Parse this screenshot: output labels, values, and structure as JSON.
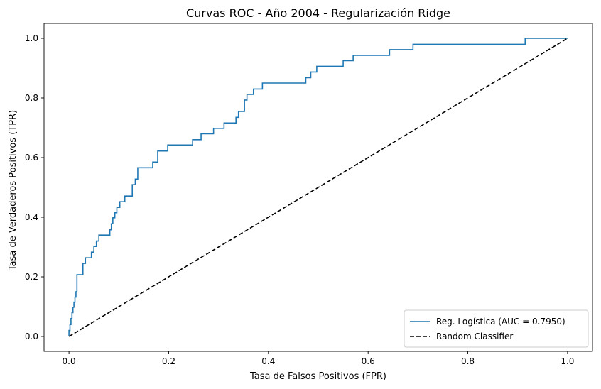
{
  "chart_data": {
    "type": "line",
    "title": "Curvas ROC - Año 2004 - Regularización Ridge",
    "xlabel": "Tasa de Falsos Positivos (FPR)",
    "ylabel": "Tasa de Verdaderos Positivos (TPR)",
    "xlim": [
      -0.05,
      1.05
    ],
    "ylim": [
      -0.05,
      1.05
    ],
    "xticks": [
      0.0,
      0.2,
      0.4,
      0.6,
      0.8,
      1.0
    ],
    "yticks": [
      0.0,
      0.2,
      0.4,
      0.6,
      0.8,
      1.0
    ],
    "xtick_labels": [
      "0.0",
      "0.2",
      "0.4",
      "0.6",
      "0.8",
      "1.0"
    ],
    "ytick_labels": [
      "0.0",
      "0.2",
      "0.4",
      "0.6",
      "0.8",
      "1.0"
    ],
    "grid": false,
    "legend_position": "bottom-right",
    "series": [
      {
        "name": "Reg. Logística (AUC = 0.7950)",
        "color": "#1f77b4",
        "style": "solid",
        "steps": [
          [
            0.0,
            0.0
          ],
          [
            0.0,
            0.02
          ],
          [
            0.002,
            0.02
          ],
          [
            0.002,
            0.04
          ],
          [
            0.004,
            0.04
          ],
          [
            0.004,
            0.06
          ],
          [
            0.006,
            0.06
          ],
          [
            0.006,
            0.08
          ],
          [
            0.008,
            0.08
          ],
          [
            0.008,
            0.098
          ],
          [
            0.01,
            0.098
          ],
          [
            0.01,
            0.115
          ],
          [
            0.012,
            0.115
          ],
          [
            0.012,
            0.132
          ],
          [
            0.014,
            0.132
          ],
          [
            0.014,
            0.15
          ],
          [
            0.016,
            0.15
          ],
          [
            0.016,
            0.207
          ],
          [
            0.028,
            0.207
          ],
          [
            0.028,
            0.245
          ],
          [
            0.033,
            0.245
          ],
          [
            0.033,
            0.264
          ],
          [
            0.045,
            0.264
          ],
          [
            0.045,
            0.283
          ],
          [
            0.05,
            0.283
          ],
          [
            0.05,
            0.302
          ],
          [
            0.055,
            0.302
          ],
          [
            0.055,
            0.32
          ],
          [
            0.06,
            0.32
          ],
          [
            0.06,
            0.34
          ],
          [
            0.082,
            0.34
          ],
          [
            0.082,
            0.358
          ],
          [
            0.085,
            0.358
          ],
          [
            0.085,
            0.378
          ],
          [
            0.088,
            0.378
          ],
          [
            0.088,
            0.398
          ],
          [
            0.092,
            0.398
          ],
          [
            0.092,
            0.415
          ],
          [
            0.096,
            0.415
          ],
          [
            0.096,
            0.433
          ],
          [
            0.102,
            0.433
          ],
          [
            0.102,
            0.452
          ],
          [
            0.112,
            0.452
          ],
          [
            0.112,
            0.471
          ],
          [
            0.127,
            0.471
          ],
          [
            0.127,
            0.509
          ],
          [
            0.133,
            0.509
          ],
          [
            0.133,
            0.528
          ],
          [
            0.138,
            0.528
          ],
          [
            0.138,
            0.566
          ],
          [
            0.168,
            0.566
          ],
          [
            0.168,
            0.585
          ],
          [
            0.178,
            0.585
          ],
          [
            0.178,
            0.622
          ],
          [
            0.198,
            0.622
          ],
          [
            0.198,
            0.642
          ],
          [
            0.248,
            0.642
          ],
          [
            0.248,
            0.66
          ],
          [
            0.265,
            0.66
          ],
          [
            0.265,
            0.68
          ],
          [
            0.29,
            0.68
          ],
          [
            0.29,
            0.698
          ],
          [
            0.311,
            0.698
          ],
          [
            0.311,
            0.716
          ],
          [
            0.335,
            0.716
          ],
          [
            0.335,
            0.735
          ],
          [
            0.34,
            0.735
          ],
          [
            0.34,
            0.755
          ],
          [
            0.352,
            0.755
          ],
          [
            0.352,
            0.793
          ],
          [
            0.357,
            0.793
          ],
          [
            0.357,
            0.812
          ],
          [
            0.37,
            0.812
          ],
          [
            0.37,
            0.83
          ],
          [
            0.388,
            0.83
          ],
          [
            0.388,
            0.85
          ],
          [
            0.475,
            0.85
          ],
          [
            0.475,
            0.868
          ],
          [
            0.485,
            0.868
          ],
          [
            0.485,
            0.887
          ],
          [
            0.497,
            0.887
          ],
          [
            0.497,
            0.906
          ],
          [
            0.55,
            0.906
          ],
          [
            0.55,
            0.925
          ],
          [
            0.57,
            0.925
          ],
          [
            0.57,
            0.943
          ],
          [
            0.643,
            0.943
          ],
          [
            0.643,
            0.962
          ],
          [
            0.69,
            0.962
          ],
          [
            0.69,
            0.98
          ],
          [
            0.915,
            0.98
          ],
          [
            0.915,
            1.0
          ],
          [
            1.0,
            1.0
          ]
        ]
      },
      {
        "name": "Random Classifier",
        "color": "#000000",
        "style": "dashed",
        "steps": [
          [
            0.0,
            0.0
          ],
          [
            1.0,
            1.0
          ]
        ]
      }
    ]
  }
}
